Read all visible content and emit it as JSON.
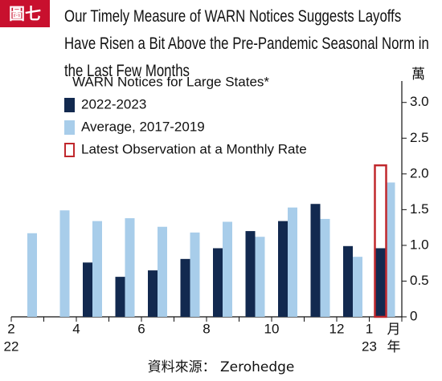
{
  "badge": "圖七",
  "chart_data": {
    "type": "bar",
    "title": "Our Timely Measure of WARN Notices Suggests Layoffs Have Risen a Bit Above the Pre-Pandemic Seasonal Norm in the Last Few Months",
    "legend_title": "WARN Notices for Large States*",
    "categories": [
      "2",
      null,
      "4",
      null,
      "6",
      null,
      "8",
      null,
      "10",
      null,
      "12",
      "1"
    ],
    "year_labels": [
      "22",
      null,
      null,
      null,
      null,
      null,
      null,
      null,
      null,
      null,
      null,
      "23"
    ],
    "x_unit": "月",
    "x_year_unit": "年",
    "y_unit": "萬",
    "series": [
      {
        "name": "2022-2023",
        "color": "#12294f",
        "values": [
          null,
          null,
          0.76,
          0.56,
          0.65,
          0.81,
          0.96,
          1.2,
          1.34,
          1.58,
          0.99,
          0.96
        ]
      },
      {
        "name": "Average, 2017-2019",
        "color": "#a8cdea",
        "values": [
          1.17,
          1.49,
          1.34,
          1.38,
          1.26,
          1.18,
          1.33,
          1.12,
          1.53,
          1.37,
          0.84,
          1.88
        ]
      }
    ],
    "latest": {
      "name": "Latest Observation at a Monthly Rate",
      "color": "#c0282d",
      "category": "1",
      "value": 2.12
    },
    "ylim": [
      0,
      3.3
    ],
    "yticks": [
      0,
      0.5,
      {
        "value": 1,
        "label": "1.0"
      },
      1.5,
      {
        "value": 2,
        "label": "2.0"
      },
      2.5,
      {
        "value": 3,
        "label": "3.0"
      }
    ],
    "y_axis_side": "right"
  },
  "source": "資料來源： Zerohedge"
}
